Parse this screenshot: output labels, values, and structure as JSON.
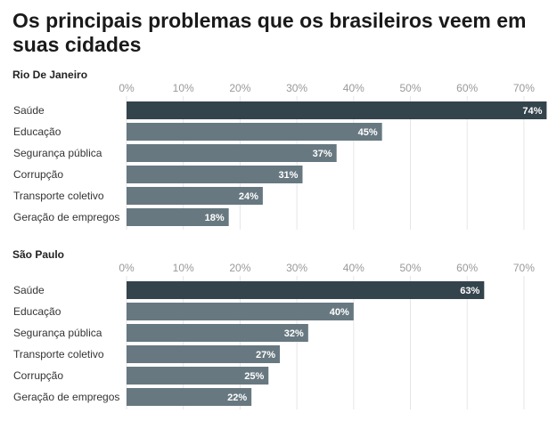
{
  "title": "Os principais problemas que os brasileiros veem em suas cidades",
  "colors": {
    "highlight": "#34444c",
    "bar": "#677880",
    "label_text": "#ffffff",
    "tick_text": "#999999",
    "grid": "#e6e6e6"
  },
  "chart_data": [
    {
      "type": "bar",
      "orientation": "horizontal",
      "title": "Rio De Janeiro",
      "xlim": [
        0,
        74
      ],
      "ticks": [
        "0%",
        "10%",
        "20%",
        "30%",
        "40%",
        "50%",
        "60%",
        "70%"
      ],
      "tick_values": [
        0,
        10,
        20,
        30,
        40,
        50,
        60,
        70
      ],
      "categories": [
        "Saúde",
        "Educação",
        "Segurança pública",
        "Corrupção",
        "Transporte coletivo",
        "Geração de empregos"
      ],
      "values": [
        74,
        45,
        37,
        31,
        24,
        18
      ],
      "value_labels": [
        "74%",
        "45%",
        "37%",
        "31%",
        "24%",
        "18%"
      ],
      "grid": true
    },
    {
      "type": "bar",
      "orientation": "horizontal",
      "title": "São Paulo",
      "xlim": [
        0,
        74
      ],
      "ticks": [
        "0%",
        "10%",
        "20%",
        "30%",
        "40%",
        "50%",
        "60%",
        "70%"
      ],
      "tick_values": [
        0,
        10,
        20,
        30,
        40,
        50,
        60,
        70
      ],
      "categories": [
        "Saúde",
        "Educação",
        "Segurança pública",
        "Transporte coletivo",
        "Corrupção",
        "Geração de empregos"
      ],
      "values": [
        63,
        40,
        32,
        27,
        25,
        22
      ],
      "value_labels": [
        "63%",
        "40%",
        "32%",
        "27%",
        "25%",
        "22%"
      ],
      "grid": true
    }
  ]
}
